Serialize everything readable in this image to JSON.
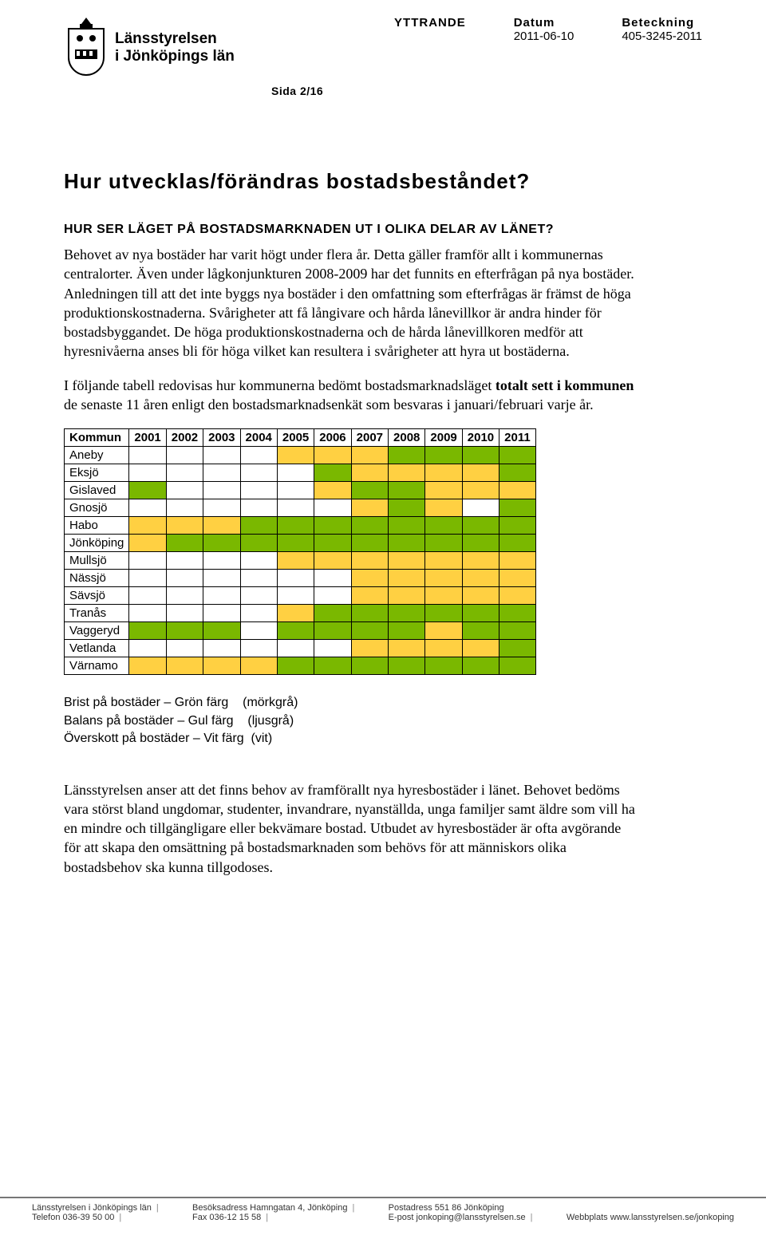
{
  "header": {
    "org_line1": "Länsstyrelsen",
    "org_line2": "i Jönköpings län",
    "doc_type_label": "YTTRANDE",
    "sida_label": "Sida 2/16",
    "datum_label": "Datum",
    "datum_value": "2011-06-10",
    "beteckning_label": "Beteckning",
    "beteckning_value": "405-3245-2011"
  },
  "title": "Hur utvecklas/förändras bostadsbeståndet?",
  "subheading": "HUR SER LÄGET PÅ BOSTADSMARKNADEN UT I OLIKA DELAR AV LÄNET?",
  "para1": "Behovet av nya bostäder har varit högt under flera år. Detta gäller framför allt i kommunernas centralorter. Även under lågkonjunkturen 2008-2009 har det funnits en efterfrågan på nya bostäder. Anledningen till att det inte byggs nya bostäder i den omfattning som efterfrågas är främst de höga produktionskostnaderna. Svårigheter att få långivare och hårda lånevillkor är andra hinder för bostadsbyggandet. De höga produktionskostnaderna och de hårda lånevillkoren medför att hyresnivåerna anses bli för höga vilket kan resultera i svårigheter att hyra ut bostäderna.",
  "para2_a": "I följande tabell redovisas hur kommunerna bedömt bostadsmarknadsläget ",
  "para2_bold": "totalt sett i kommunen",
  "para2_b": " de senaste 11 åren enligt den bostadsmarknadsenkät som besvaras i januari/februari varje år.",
  "table": {
    "first_col_header": "Kommun",
    "years": [
      "2001",
      "2002",
      "2003",
      "2004",
      "2005",
      "2006",
      "2007",
      "2008",
      "2009",
      "2010",
      "2011"
    ],
    "commune_header_bg": "#ffffff",
    "colors": {
      "green": "#7ab800",
      "yellow": "#ffd042",
      "white": "#ffffff"
    },
    "rows": [
      {
        "name": "Aneby",
        "cells": [
          "white",
          "white",
          "white",
          "white",
          "yellow",
          "yellow",
          "yellow",
          "green",
          "green",
          "green",
          "green"
        ]
      },
      {
        "name": "Eksjö",
        "cells": [
          "white",
          "white",
          "white",
          "white",
          "white",
          "green",
          "yellow",
          "yellow",
          "yellow",
          "yellow",
          "green"
        ]
      },
      {
        "name": "Gislaved",
        "cells": [
          "green",
          "white",
          "white",
          "white",
          "white",
          "yellow",
          "green",
          "green",
          "yellow",
          "yellow",
          "yellow"
        ]
      },
      {
        "name": "Gnosjö",
        "cells": [
          "white",
          "white",
          "white",
          "white",
          "white",
          "white",
          "yellow",
          "green",
          "yellow",
          "white",
          "green"
        ]
      },
      {
        "name": "Habo",
        "cells": [
          "yellow",
          "yellow",
          "yellow",
          "green",
          "green",
          "green",
          "green",
          "green",
          "green",
          "green",
          "green"
        ]
      },
      {
        "name": "Jönköping",
        "cells": [
          "yellow",
          "green",
          "green",
          "green",
          "green",
          "green",
          "green",
          "green",
          "green",
          "green",
          "green"
        ]
      },
      {
        "name": "Mullsjö",
        "cells": [
          "white",
          "white",
          "white",
          "white",
          "yellow",
          "yellow",
          "yellow",
          "yellow",
          "yellow",
          "yellow",
          "yellow"
        ]
      },
      {
        "name": "Nässjö",
        "cells": [
          "white",
          "white",
          "white",
          "white",
          "white",
          "white",
          "yellow",
          "yellow",
          "yellow",
          "yellow",
          "yellow"
        ]
      },
      {
        "name": "Sävsjö",
        "cells": [
          "white",
          "white",
          "white",
          "white",
          "white",
          "white",
          "yellow",
          "yellow",
          "yellow",
          "yellow",
          "yellow"
        ]
      },
      {
        "name": "Tranås",
        "cells": [
          "white",
          "white",
          "white",
          "white",
          "yellow",
          "green",
          "green",
          "green",
          "green",
          "green",
          "green"
        ]
      },
      {
        "name": "Vaggeryd",
        "cells": [
          "green",
          "green",
          "green",
          "white",
          "green",
          "green",
          "green",
          "green",
          "yellow",
          "green",
          "green"
        ]
      },
      {
        "name": "Vetlanda",
        "cells": [
          "white",
          "white",
          "white",
          "white",
          "white",
          "white",
          "yellow",
          "yellow",
          "yellow",
          "yellow",
          "green"
        ]
      },
      {
        "name": "Värnamo",
        "cells": [
          "yellow",
          "yellow",
          "yellow",
          "yellow",
          "green",
          "green",
          "green",
          "green",
          "green",
          "green",
          "green"
        ]
      }
    ]
  },
  "legend": {
    "l1_a": "Brist på bostäder – Grön färg",
    "l1_b": "(mörkgrå)",
    "l2_a": "Balans på bostäder – Gul färg",
    "l2_b": "(ljusgrå)",
    "l3_a": "Överskott på bostäder – Vit färg",
    "l3_b": "(vit)"
  },
  "para3": "Länsstyrelsen anser att det finns behov av framförallt nya hyresbostäder i länet. Behovet bedöms vara störst bland ungdomar, studenter, invandrare, nyanställda, unga familjer samt äldre som vill ha en mindre och tillgängligare eller bekvämare bostad. Utbudet av hyresbostäder är ofta avgörande för att skapa den omsättning på bostadsmarknaden som behövs för att människors olika bostadsbehov ska kunna tillgodoses.",
  "footer": {
    "c1a": "Länsstyrelsen i Jönköpings län",
    "c1b": "Telefon 036-39 50 00",
    "c2a": "Besöksadress Hamngatan 4, Jönköping",
    "c2b": "Fax 036-12 15 58",
    "c3a": "Postadress 551 86 Jönköping",
    "c3b": "E-post jonkoping@lansstyrelsen.se",
    "c4": "Webbplats www.lansstyrelsen.se/jonkoping"
  }
}
